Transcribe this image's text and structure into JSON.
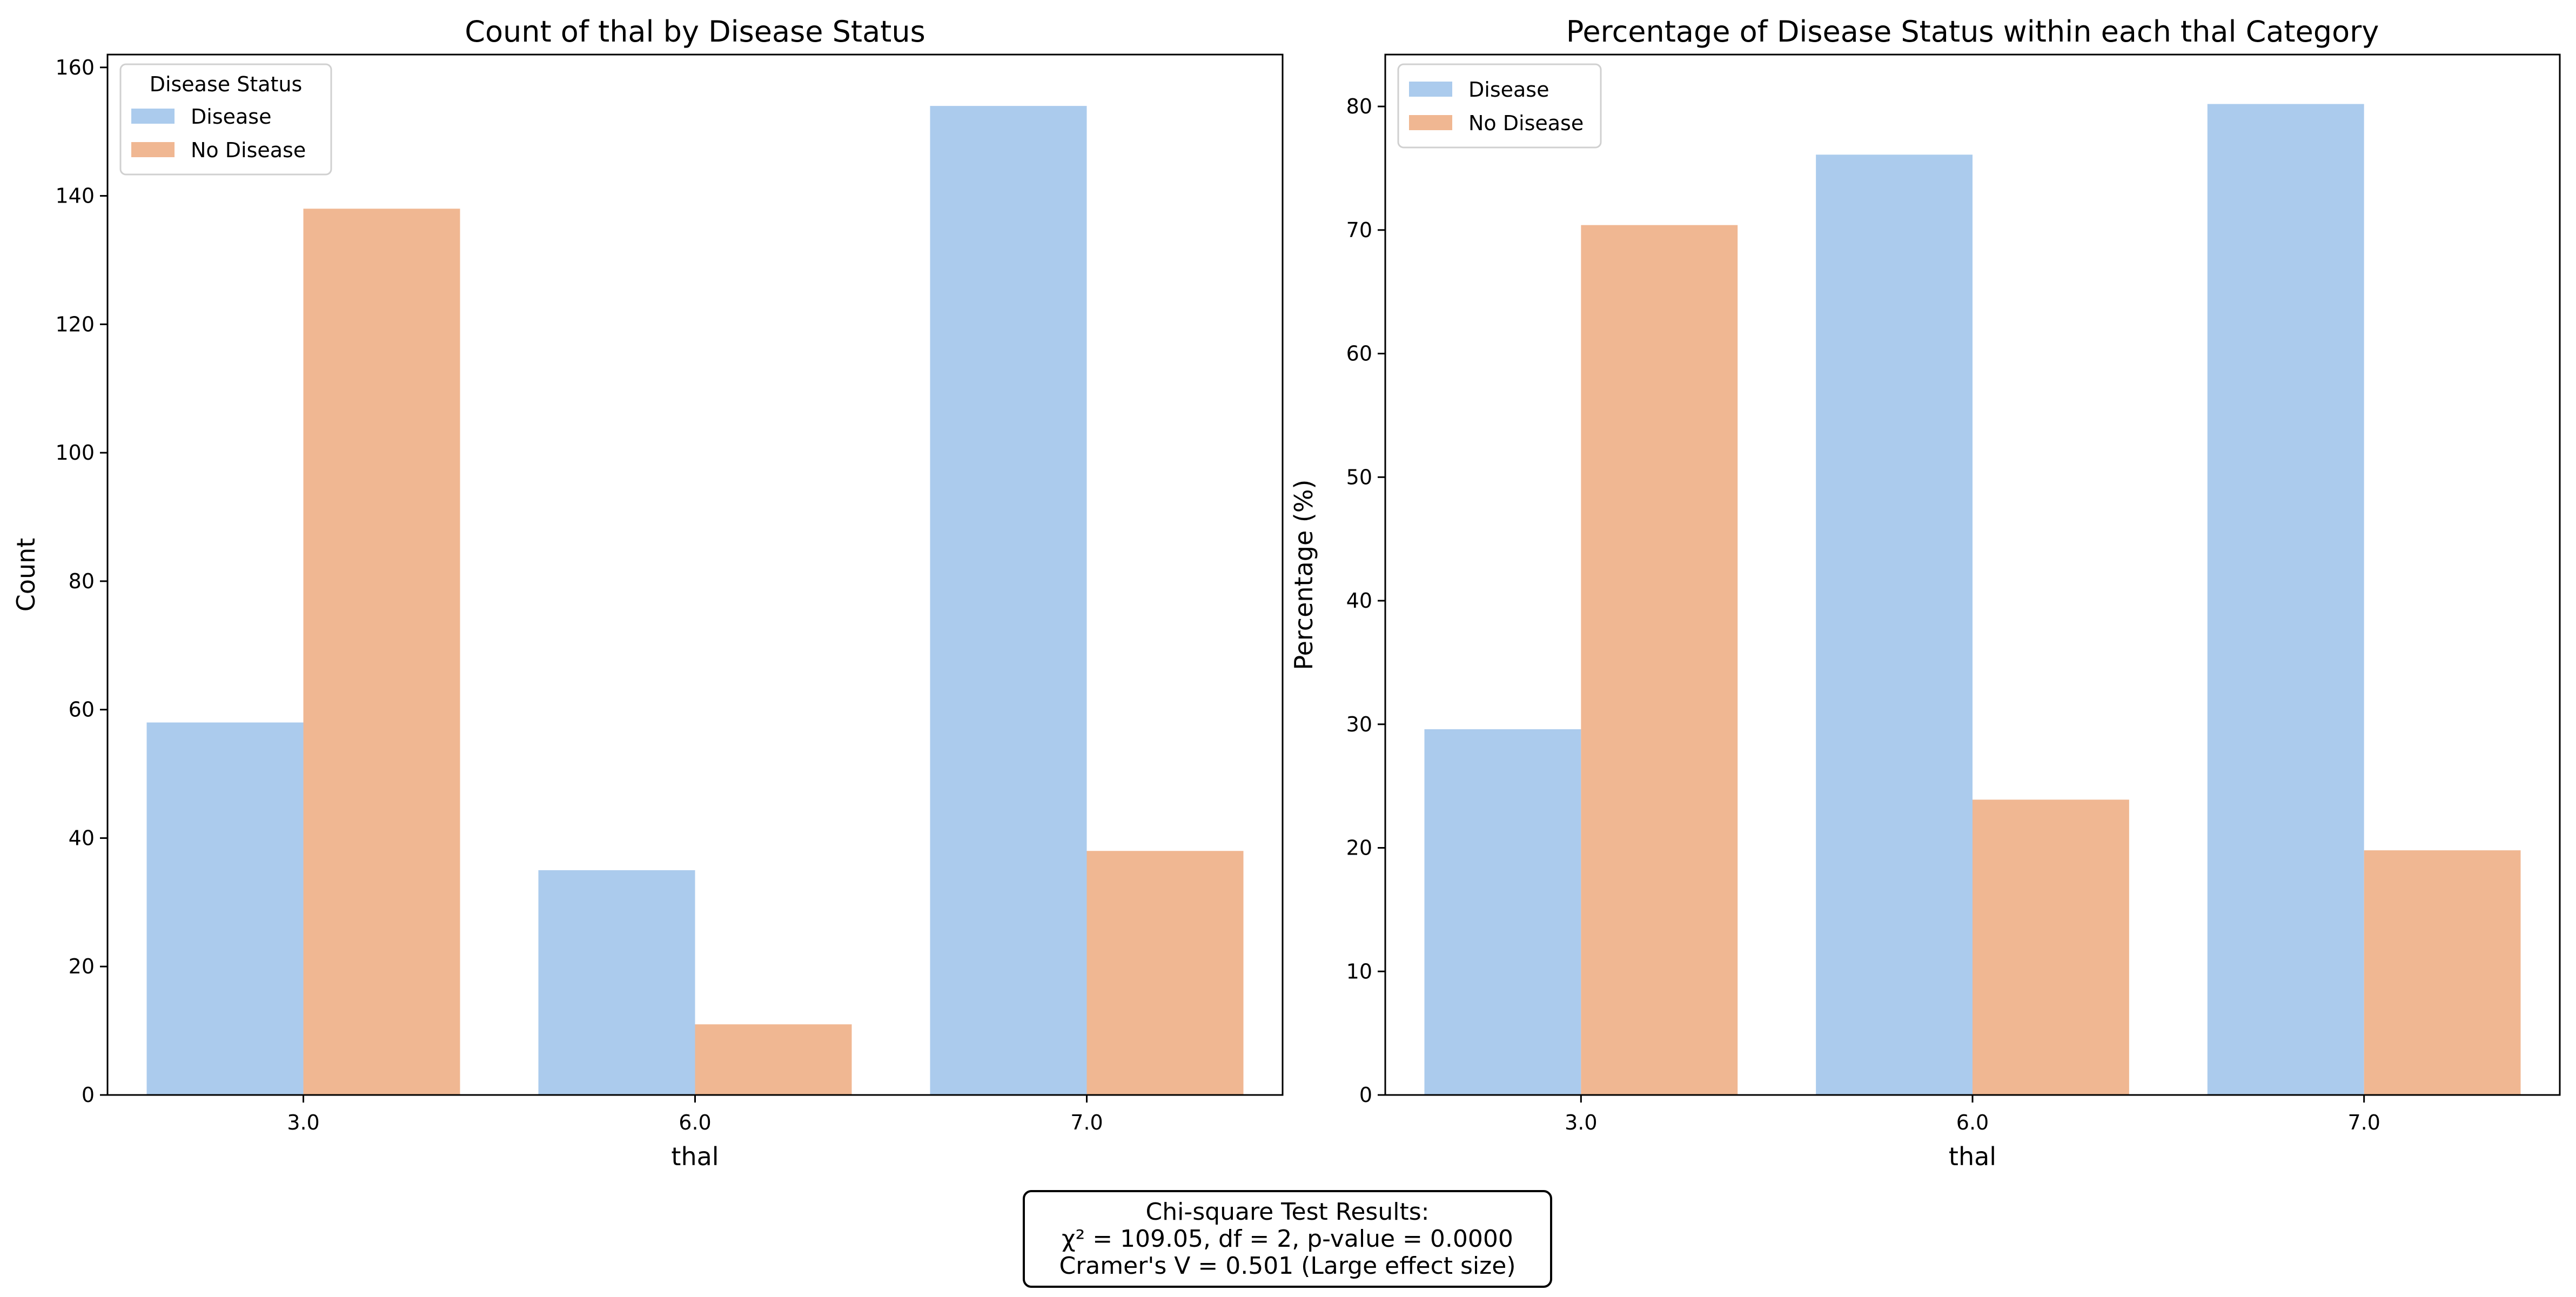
{
  "chart_data": [
    {
      "type": "bar",
      "title": "Count of thal by Disease Status",
      "xlabel": "thal",
      "ylabel": "Count",
      "categories": [
        "3.0",
        "6.0",
        "7.0"
      ],
      "series": [
        {
          "name": "Disease",
          "values": [
            58,
            35,
            154
          ],
          "color": "#abcbed"
        },
        {
          "name": "No Disease",
          "values": [
            138,
            11,
            38
          ],
          "color": "#f0b792"
        }
      ],
      "ylim": [
        0,
        162
      ],
      "yticks": [
        0,
        20,
        40,
        60,
        80,
        100,
        120,
        140,
        160
      ],
      "legend": {
        "title": "Disease Status",
        "placement": "top-left"
      },
      "grid": false
    },
    {
      "type": "bar",
      "title": "Percentage of Disease Status within each thal Category",
      "xlabel": "thal",
      "ylabel": "Percentage (%)",
      "categories": [
        "3.0",
        "6.0",
        "7.0"
      ],
      "series": [
        {
          "name": "Disease",
          "values": [
            29.6,
            76.1,
            80.2
          ],
          "color": "#abcbed"
        },
        {
          "name": "No Disease",
          "values": [
            70.4,
            23.9,
            19.8
          ],
          "color": "#f0b792"
        }
      ],
      "ylim": [
        0,
        84.2
      ],
      "yticks": [
        0,
        10,
        20,
        30,
        40,
        50,
        60,
        70,
        80
      ],
      "legend": {
        "title": "",
        "placement": "top-left"
      },
      "grid": false
    }
  ],
  "stats_box": {
    "line1": "Chi-square Test Results:",
    "line2": "χ² = 109.05, df = 2, p-value = 0.0000",
    "line3": "Cramer's V = 0.501 (Large effect size)"
  }
}
